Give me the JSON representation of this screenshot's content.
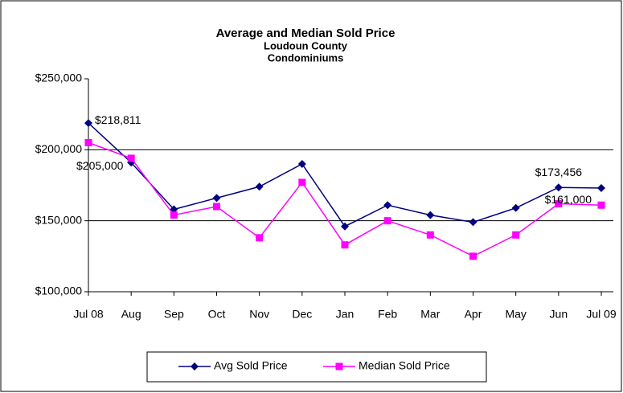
{
  "chart_data": {
    "type": "line",
    "title": "Average and Median Sold Price",
    "subtitle": [
      "Loudoun County",
      "Condominiums"
    ],
    "categories": [
      "Jul 08",
      "Aug",
      "Sep",
      "Oct",
      "Nov",
      "Dec",
      "Jan",
      "Feb",
      "Mar",
      "Apr",
      "May",
      "Jun",
      "Jul 09"
    ],
    "series": [
      {
        "name": "Avg Sold Price",
        "color": "#000080",
        "marker": "diamond",
        "values": [
          218811,
          191000,
          158000,
          166000,
          174000,
          190000,
          146000,
          161000,
          154000,
          149000,
          159000,
          173456,
          173000
        ],
        "value_labels": [
          "$218,811",
          null,
          null,
          null,
          null,
          null,
          null,
          null,
          null,
          null,
          null,
          "$173,456",
          null
        ]
      },
      {
        "name": "Median Sold Price",
        "color": "#ff00ff",
        "marker": "square",
        "values": [
          205000,
          194000,
          154000,
          160000,
          138000,
          177000,
          133000,
          150000,
          140000,
          125000,
          140000,
          162000,
          161000
        ],
        "value_labels": [
          "$205,000",
          null,
          null,
          null,
          null,
          null,
          null,
          null,
          null,
          null,
          null,
          null,
          "$161,000"
        ]
      }
    ],
    "ylim": [
      100000,
      250000
    ],
    "yticks": [
      {
        "value": 100000,
        "label": "$100,000"
      },
      {
        "value": 150000,
        "label": "$150,000"
      },
      {
        "value": 200000,
        "label": "$200,000"
      },
      {
        "value": 250000,
        "label": "$250,000"
      }
    ],
    "grid": true,
    "legend": "bottom"
  }
}
